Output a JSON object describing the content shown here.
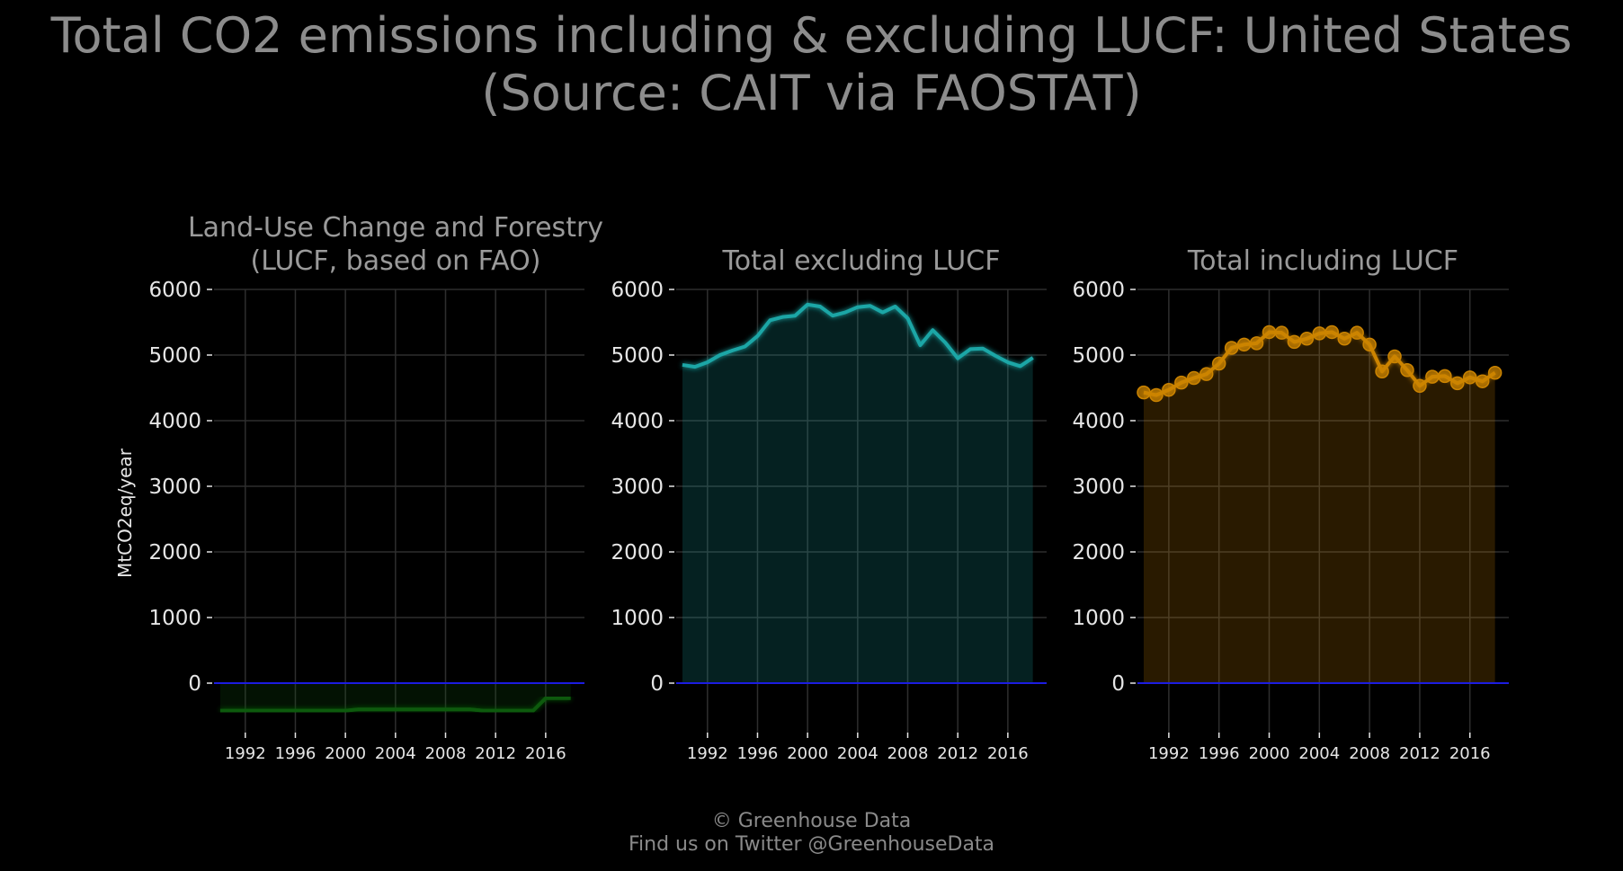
{
  "title_line1": "Total CO2 emissions including & excluding LUCF: United States",
  "title_line2": "(Source: CAIT via FAOSTAT)",
  "footer_line1": "© Greenhouse Data",
  "footer_line2": "Find us on Twitter @GreenhouseData",
  "chart_data": [
    {
      "type": "area",
      "title_line1": "Land-Use Change and Forestry",
      "title_line2": "(LUCF, based on FAO)",
      "ylabel": "MtCO2eq/year",
      "ylim": [
        0,
        6000
      ],
      "yticks": [
        0,
        1000,
        2000,
        3000,
        4000,
        5000,
        6000
      ],
      "xticks": [
        1992,
        1996,
        2000,
        2004,
        2008,
        2012,
        2016
      ],
      "color": "#0f5a0f",
      "markers": false,
      "x": [
        1990,
        1991,
        1992,
        1993,
        1994,
        1995,
        1996,
        1997,
        1998,
        1999,
        2000,
        2001,
        2002,
        2003,
        2004,
        2005,
        2006,
        2007,
        2008,
        2009,
        2010,
        2011,
        2012,
        2013,
        2014,
        2015,
        2016,
        2017,
        2018
      ],
      "values": [
        -420,
        -420,
        -420,
        -420,
        -420,
        -420,
        -420,
        -420,
        -420,
        -420,
        -420,
        -400,
        -400,
        -400,
        -400,
        -400,
        -400,
        -400,
        -400,
        -400,
        -400,
        -420,
        -420,
        -420,
        -420,
        -420,
        -230,
        -230,
        -230
      ]
    },
    {
      "type": "area",
      "title_line1": "",
      "title_line2": "Total excluding LUCF",
      "ylim": [
        0,
        6000
      ],
      "yticks": [
        0,
        1000,
        2000,
        3000,
        4000,
        5000,
        6000
      ],
      "xticks": [
        1992,
        1996,
        2000,
        2004,
        2008,
        2012,
        2016
      ],
      "color": "#1aa6a6",
      "markers": false,
      "x": [
        1990,
        1991,
        1992,
        1993,
        1994,
        1995,
        1996,
        1997,
        1998,
        1999,
        2000,
        2001,
        2002,
        2003,
        2004,
        2005,
        2006,
        2007,
        2008,
        2009,
        2010,
        2011,
        2012,
        2013,
        2014,
        2015,
        2016,
        2017,
        2018
      ],
      "values": [
        4850,
        4820,
        4890,
        5000,
        5070,
        5130,
        5290,
        5530,
        5580,
        5600,
        5770,
        5740,
        5600,
        5650,
        5730,
        5750,
        5650,
        5740,
        5560,
        5150,
        5380,
        5190,
        4950,
        5090,
        5100,
        4990,
        4890,
        4830,
        4960
      ]
    },
    {
      "type": "area",
      "title_line1": "",
      "title_line2": "Total including LUCF",
      "ylim": [
        0,
        6000
      ],
      "yticks": [
        0,
        1000,
        2000,
        3000,
        4000,
        5000,
        6000
      ],
      "xticks": [
        1992,
        1996,
        2000,
        2004,
        2008,
        2012,
        2016
      ],
      "color": "#cc8400",
      "markers": true,
      "x": [
        1990,
        1991,
        1992,
        1993,
        1994,
        1995,
        1996,
        1997,
        1998,
        1999,
        2000,
        2001,
        2002,
        2003,
        2004,
        2005,
        2006,
        2007,
        2008,
        2009,
        2010,
        2011,
        2012,
        2013,
        2014,
        2015,
        2016,
        2017,
        2018
      ],
      "values": [
        4430,
        4390,
        4470,
        4580,
        4650,
        4710,
        4870,
        5110,
        5160,
        5180,
        5350,
        5340,
        5200,
        5250,
        5330,
        5350,
        5250,
        5340,
        5160,
        4750,
        4980,
        4770,
        4530,
        4670,
        4680,
        4570,
        4660,
        4600,
        4730
      ]
    }
  ]
}
